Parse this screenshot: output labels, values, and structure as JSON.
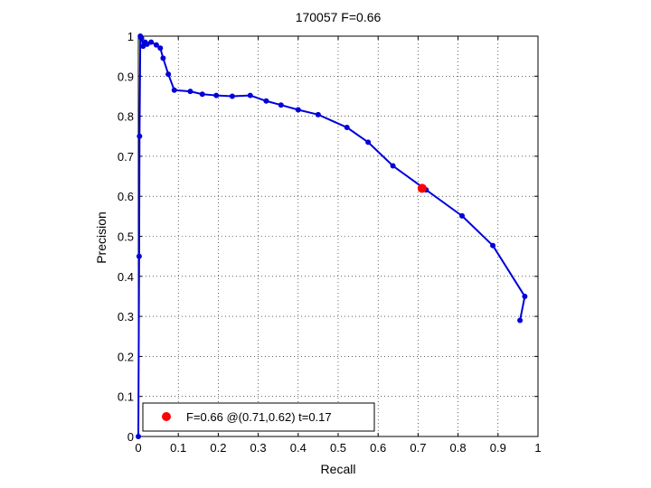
{
  "chart_data": {
    "type": "line",
    "title": "170057 F=0.66",
    "xlabel": "Recall",
    "ylabel": "Precision",
    "xlim": [
      0,
      1
    ],
    "ylim": [
      0,
      1
    ],
    "xticks": [
      "0",
      "0.1",
      "0.2",
      "0.3",
      "0.4",
      "0.5",
      "0.6",
      "0.7",
      "0.8",
      "0.9",
      "1"
    ],
    "yticks": [
      "0",
      "0.1",
      "0.2",
      "0.3",
      "0.4",
      "0.5",
      "0.6",
      "0.7",
      "0.8",
      "0.9",
      "1"
    ],
    "grid": true,
    "legend_placement": "bottom-left",
    "series": [
      {
        "color": "#0000d8",
        "x": [
          0.0,
          0.002,
          0.003,
          0.005,
          0.008,
          0.012,
          0.017,
          0.022,
          0.032,
          0.045,
          0.055,
          0.062,
          0.075,
          0.09,
          0.13,
          0.16,
          0.195,
          0.235,
          0.28,
          0.32,
          0.357,
          0.4,
          0.45,
          0.522,
          0.575,
          0.637,
          0.72,
          0.81,
          0.887,
          0.967,
          0.955
        ],
        "y": [
          0.0,
          0.45,
          0.75,
          1.0,
          0.995,
          0.975,
          0.985,
          0.98,
          0.985,
          0.978,
          0.97,
          0.945,
          0.905,
          0.865,
          0.862,
          0.855,
          0.852,
          0.85,
          0.852,
          0.838,
          0.828,
          0.816,
          0.804,
          0.772,
          0.735,
          0.676,
          0.616,
          0.551,
          0.477,
          0.35,
          0.29
        ]
      }
    ],
    "highlight": {
      "x": 0.71,
      "y": 0.62,
      "color": "#ff0000"
    },
    "legend": {
      "marker_color": "#ff0000",
      "label": "F=0.66 @(0.71,0.62) t=0.17"
    }
  }
}
